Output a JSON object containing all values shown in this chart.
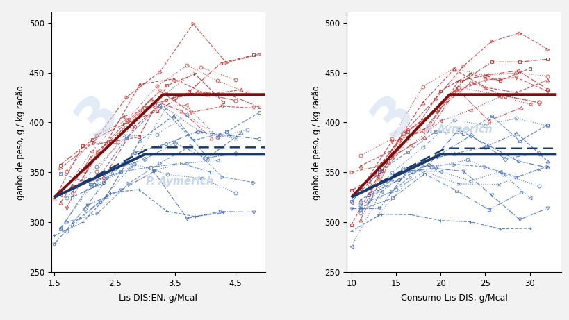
{
  "left_xlabel": "Lis DIS:EN, g/Mcal",
  "right_xlabel": "Consumo Lis DIS, g/Mcal",
  "ylabel": "ganho de peso, g / kg racão",
  "ylim": [
    250,
    510
  ],
  "yticks": [
    250,
    300,
    350,
    400,
    450,
    500
  ],
  "left_xlim": [
    1.45,
    5.0
  ],
  "left_xticks": [
    1.5,
    2.5,
    3.5,
    4.5
  ],
  "right_xlim": [
    9.5,
    33.5
  ],
  "right_xticks": [
    10,
    15,
    20,
    25,
    30
  ],
  "dark_red": "#7B1010",
  "dark_blue": "#1B3A6B",
  "watermark_color": "#C8D8EE",
  "watermark_text": "P. Aymerich",
  "bg_color": "#F2F2F2",
  "axes_bg": "#FFFFFF",
  "red_thin_colors": [
    "#C03030",
    "#B52020",
    "#CC3838",
    "#B82828",
    "#C83030",
    "#B03030",
    "#CC3030",
    "#B52525",
    "#C03535",
    "#B82020",
    "#C83535"
  ],
  "blue_thin_colors": [
    "#4472C4",
    "#3A62B4",
    "#4878C8",
    "#3060B0",
    "#4070C0",
    "#3868B8",
    "#5078C8",
    "#3060B0",
    "#4070BC",
    "#3868B4",
    "#4878C0",
    "#3A68BC"
  ],
  "light_red_colors": [
    "#CC7070",
    "#C06060",
    "#D07878",
    "#C86868",
    "#CC6868"
  ],
  "light_blue_colors": [
    "#80A8D8",
    "#7098C8",
    "#88B0DC",
    "#78A0CC",
    "#80A0D0"
  ]
}
